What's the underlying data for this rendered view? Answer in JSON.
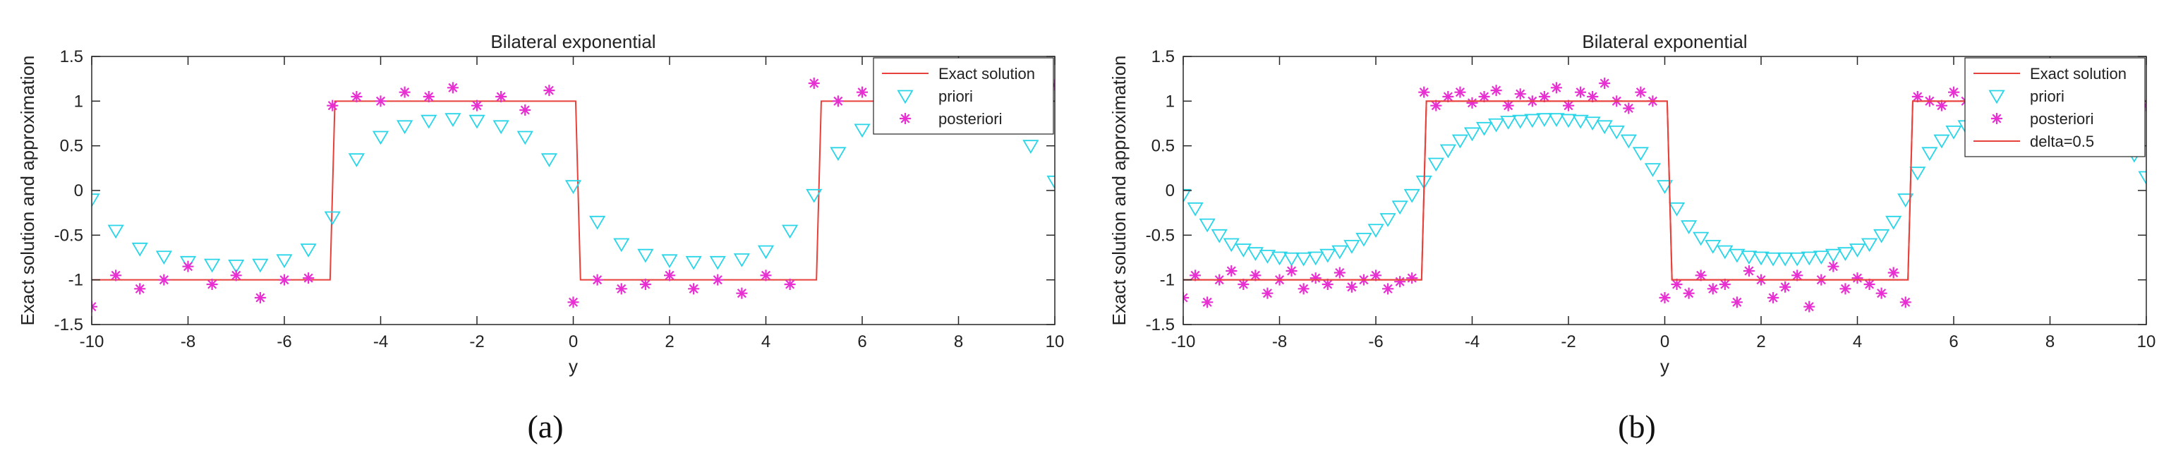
{
  "chart_data": [
    {
      "type": "line",
      "panel_label": "(a)",
      "title": "Bilateral exponential",
      "xlabel": "y",
      "ylabel": "Exact solution and approximation",
      "xlim": [
        -10,
        10
      ],
      "ylim": [
        -1.5,
        1.5
      ],
      "xticks": [
        "-10",
        "-8",
        "-6",
        "-4",
        "-2",
        "0",
        "2",
        "4",
        "6",
        "8",
        "10"
      ],
      "yticks": [
        "-1.5",
        "-1",
        "-0.5",
        "0",
        "0.5",
        "1",
        "1.5"
      ],
      "legend_position": "top-right",
      "series": [
        {
          "name": "Exact solution",
          "style": "line",
          "color": "#e8403a",
          "x": [
            -10,
            -5.05,
            -4.95,
            0.05,
            0.15,
            5.05,
            5.15,
            10
          ],
          "y": [
            -1,
            -1,
            1,
            1,
            -1,
            -1,
            1,
            1
          ]
        },
        {
          "name": "priori",
          "style": "triangle-down",
          "color": "#29d5e8",
          "x": [
            -10,
            -9.5,
            -9,
            -8.5,
            -8,
            -7.5,
            -7,
            -6.5,
            -6,
            -5.5,
            -5,
            -4.5,
            -4,
            -3.5,
            -3,
            -2.5,
            -2,
            -1.5,
            -1,
            -0.5,
            0,
            0.5,
            1,
            1.5,
            2,
            2.5,
            3,
            3.5,
            4,
            4.5,
            5,
            5.5,
            6,
            6.5,
            7,
            7.5,
            8,
            8.5,
            9,
            9.5,
            10
          ],
          "y": [
            -0.1,
            -0.45,
            -0.65,
            -0.74,
            -0.8,
            -0.83,
            -0.84,
            -0.83,
            -0.78,
            -0.66,
            -0.3,
            0.35,
            0.6,
            0.72,
            0.78,
            0.8,
            0.78,
            0.72,
            0.6,
            0.35,
            0.05,
            -0.35,
            -0.6,
            -0.72,
            -0.78,
            -0.8,
            -0.8,
            -0.77,
            -0.68,
            -0.45,
            -0.05,
            0.42,
            0.68,
            0.8,
            0.86,
            0.9,
            0.92,
            0.9,
            0.8,
            0.5,
            0.1
          ]
        },
        {
          "name": "posteriori",
          "style": "star",
          "color": "#e830d2",
          "x": [
            -10,
            -9.5,
            -9,
            -8.5,
            -8,
            -7.5,
            -7,
            -6.5,
            -6,
            -5.5,
            -5,
            -4.5,
            -4,
            -3.5,
            -3,
            -2.5,
            -2,
            -1.5,
            -1,
            -0.5,
            0,
            0.5,
            1,
            1.5,
            2,
            2.5,
            3,
            3.5,
            4,
            4.5,
            5,
            5.5,
            6,
            6.5,
            7,
            7.5,
            8,
            8.5,
            9,
            9.5,
            10
          ],
          "y": [
            -1.3,
            -0.95,
            -1.1,
            -1.0,
            -0.85,
            -1.05,
            -0.95,
            -1.2,
            -1.0,
            -0.98,
            0.95,
            1.05,
            1.0,
            1.1,
            1.05,
            1.15,
            0.95,
            1.05,
            0.9,
            1.12,
            -1.25,
            -1.0,
            -1.1,
            -1.05,
            -0.95,
            -1.1,
            -1.0,
            -1.15,
            -0.95,
            -1.05,
            1.2,
            1.0,
            1.1,
            0.9,
            1.05,
            0.85,
            1.25,
            0.95,
            1.05,
            1.0,
            1.18
          ]
        }
      ]
    },
    {
      "type": "line",
      "panel_label": "(b)",
      "title": "Bilateral exponential",
      "xlabel": "y",
      "ylabel": "Exact solution and approximation",
      "xlim": [
        -10,
        10
      ],
      "ylim": [
        -1.5,
        1.5
      ],
      "xticks": [
        "-10",
        "-8",
        "-6",
        "-4",
        "-2",
        "0",
        "2",
        "4",
        "6",
        "8",
        "10"
      ],
      "yticks": [
        "-1.5",
        "-1",
        "-0.5",
        "0",
        "0.5",
        "1",
        "1.5"
      ],
      "legend_position": "top-right",
      "series": [
        {
          "name": "Exact solution",
          "style": "line",
          "color": "#e8403a",
          "x": [
            -10,
            -5.05,
            -4.95,
            0.05,
            0.15,
            5.05,
            5.15,
            10
          ],
          "y": [
            -1,
            -1,
            1,
            1,
            -1,
            -1,
            1,
            1
          ]
        },
        {
          "name": "priori",
          "style": "triangle-down",
          "color": "#29d5e8",
          "x": [
            -10,
            -9.75,
            -9.5,
            -9.25,
            -9,
            -8.75,
            -8.5,
            -8.25,
            -8,
            -7.75,
            -7.5,
            -7.25,
            -7,
            -6.75,
            -6.5,
            -6.25,
            -6,
            -5.75,
            -5.5,
            -5.25,
            -5,
            -4.75,
            -4.5,
            -4.25,
            -4,
            -3.75,
            -3.5,
            -3.25,
            -3,
            -2.75,
            -2.5,
            -2.25,
            -2,
            -1.75,
            -1.5,
            -1.25,
            -1,
            -0.75,
            -0.5,
            -0.25,
            0,
            0.25,
            0.5,
            0.75,
            1,
            1.25,
            1.5,
            1.75,
            2,
            2.25,
            2.5,
            2.75,
            3,
            3.25,
            3.5,
            3.75,
            4,
            4.25,
            4.5,
            4.75,
            5,
            5.25,
            5.5,
            5.75,
            6,
            6.25,
            6.5,
            6.75,
            7,
            7.25,
            7.5,
            7.75,
            8,
            8.25,
            8.5,
            8.75,
            9,
            9.25,
            9.5,
            9.75,
            10
          ],
          "y": [
            -0.05,
            -0.2,
            -0.38,
            -0.5,
            -0.6,
            -0.66,
            -0.7,
            -0.73,
            -0.75,
            -0.76,
            -0.76,
            -0.75,
            -0.72,
            -0.68,
            -0.62,
            -0.54,
            -0.44,
            -0.32,
            -0.18,
            -0.05,
            0.1,
            0.3,
            0.45,
            0.56,
            0.64,
            0.7,
            0.74,
            0.77,
            0.78,
            0.79,
            0.8,
            0.8,
            0.79,
            0.78,
            0.76,
            0.72,
            0.66,
            0.56,
            0.42,
            0.24,
            0.05,
            -0.2,
            -0.4,
            -0.53,
            -0.62,
            -0.68,
            -0.72,
            -0.74,
            -0.75,
            -0.76,
            -0.76,
            -0.76,
            -0.75,
            -0.74,
            -0.72,
            -0.7,
            -0.66,
            -0.6,
            -0.5,
            -0.35,
            -0.1,
            0.2,
            0.42,
            0.56,
            0.66,
            0.72,
            0.76,
            0.8,
            0.82,
            0.84,
            0.86,
            0.87,
            0.88,
            0.88,
            0.87,
            0.86,
            0.84,
            0.78,
            0.65,
            0.4,
            0.15
          ]
        },
        {
          "name": "posteriori",
          "style": "star",
          "color": "#e830d2",
          "x": [
            -10,
            -9.75,
            -9.5,
            -9.25,
            -9,
            -8.75,
            -8.5,
            -8.25,
            -8,
            -7.75,
            -7.5,
            -7.25,
            -7,
            -6.75,
            -6.5,
            -6.25,
            -6,
            -5.75,
            -5.5,
            -5.25,
            -5,
            -4.75,
            -4.5,
            -4.25,
            -4,
            -3.75,
            -3.5,
            -3.25,
            -3,
            -2.75,
            -2.5,
            -2.25,
            -2,
            -1.75,
            -1.5,
            -1.25,
            -1,
            -0.75,
            -0.5,
            -0.25,
            0,
            0.25,
            0.5,
            0.75,
            1,
            1.25,
            1.5,
            1.75,
            2,
            2.25,
            2.5,
            2.75,
            3,
            3.25,
            3.5,
            3.75,
            4,
            4.25,
            4.5,
            4.75,
            5,
            5.25,
            5.5,
            5.75,
            6,
            6.25,
            6.5,
            6.75,
            7,
            7.25,
            7.5,
            7.75,
            8,
            8.25,
            8.5,
            8.75,
            9,
            9.25,
            9.5,
            9.75,
            10
          ],
          "y": [
            -1.2,
            -0.95,
            -1.25,
            -1.0,
            -0.9,
            -1.05,
            -0.95,
            -1.15,
            -1.0,
            -0.9,
            -1.1,
            -0.98,
            -1.05,
            -0.92,
            -1.08,
            -1.0,
            -0.95,
            -1.1,
            -1.02,
            -0.98,
            1.1,
            0.95,
            1.05,
            1.1,
            0.98,
            1.05,
            1.12,
            0.95,
            1.08,
            1.0,
            1.05,
            1.15,
            0.95,
            1.1,
            1.05,
            1.2,
            1.0,
            0.92,
            1.1,
            1.0,
            -1.2,
            -1.05,
            -1.15,
            -0.95,
            -1.1,
            -1.05,
            -1.25,
            -0.9,
            -1.0,
            -1.2,
            -1.08,
            -0.95,
            -1.3,
            -1.0,
            -0.85,
            -1.1,
            -0.98,
            -1.05,
            -1.15,
            -0.92,
            -1.25,
            1.05,
            1.0,
            0.95,
            1.1,
            1.0,
            0.9,
            1.05,
            0.98,
            1.1,
            0.95,
            1.0,
            1.08,
            1.0,
            0.92,
            1.05,
            1.1,
            0.95,
            1.0,
            1.05,
            0.95
          ]
        },
        {
          "name": "delta=0.5",
          "style": "line",
          "color": "#e8403a",
          "x": [
            -10,
            -5.05,
            -4.95,
            0.05,
            0.15,
            5.05,
            5.15,
            10
          ],
          "y": [
            -1,
            -1,
            1,
            1,
            -1,
            -1,
            1,
            1
          ]
        }
      ]
    }
  ]
}
